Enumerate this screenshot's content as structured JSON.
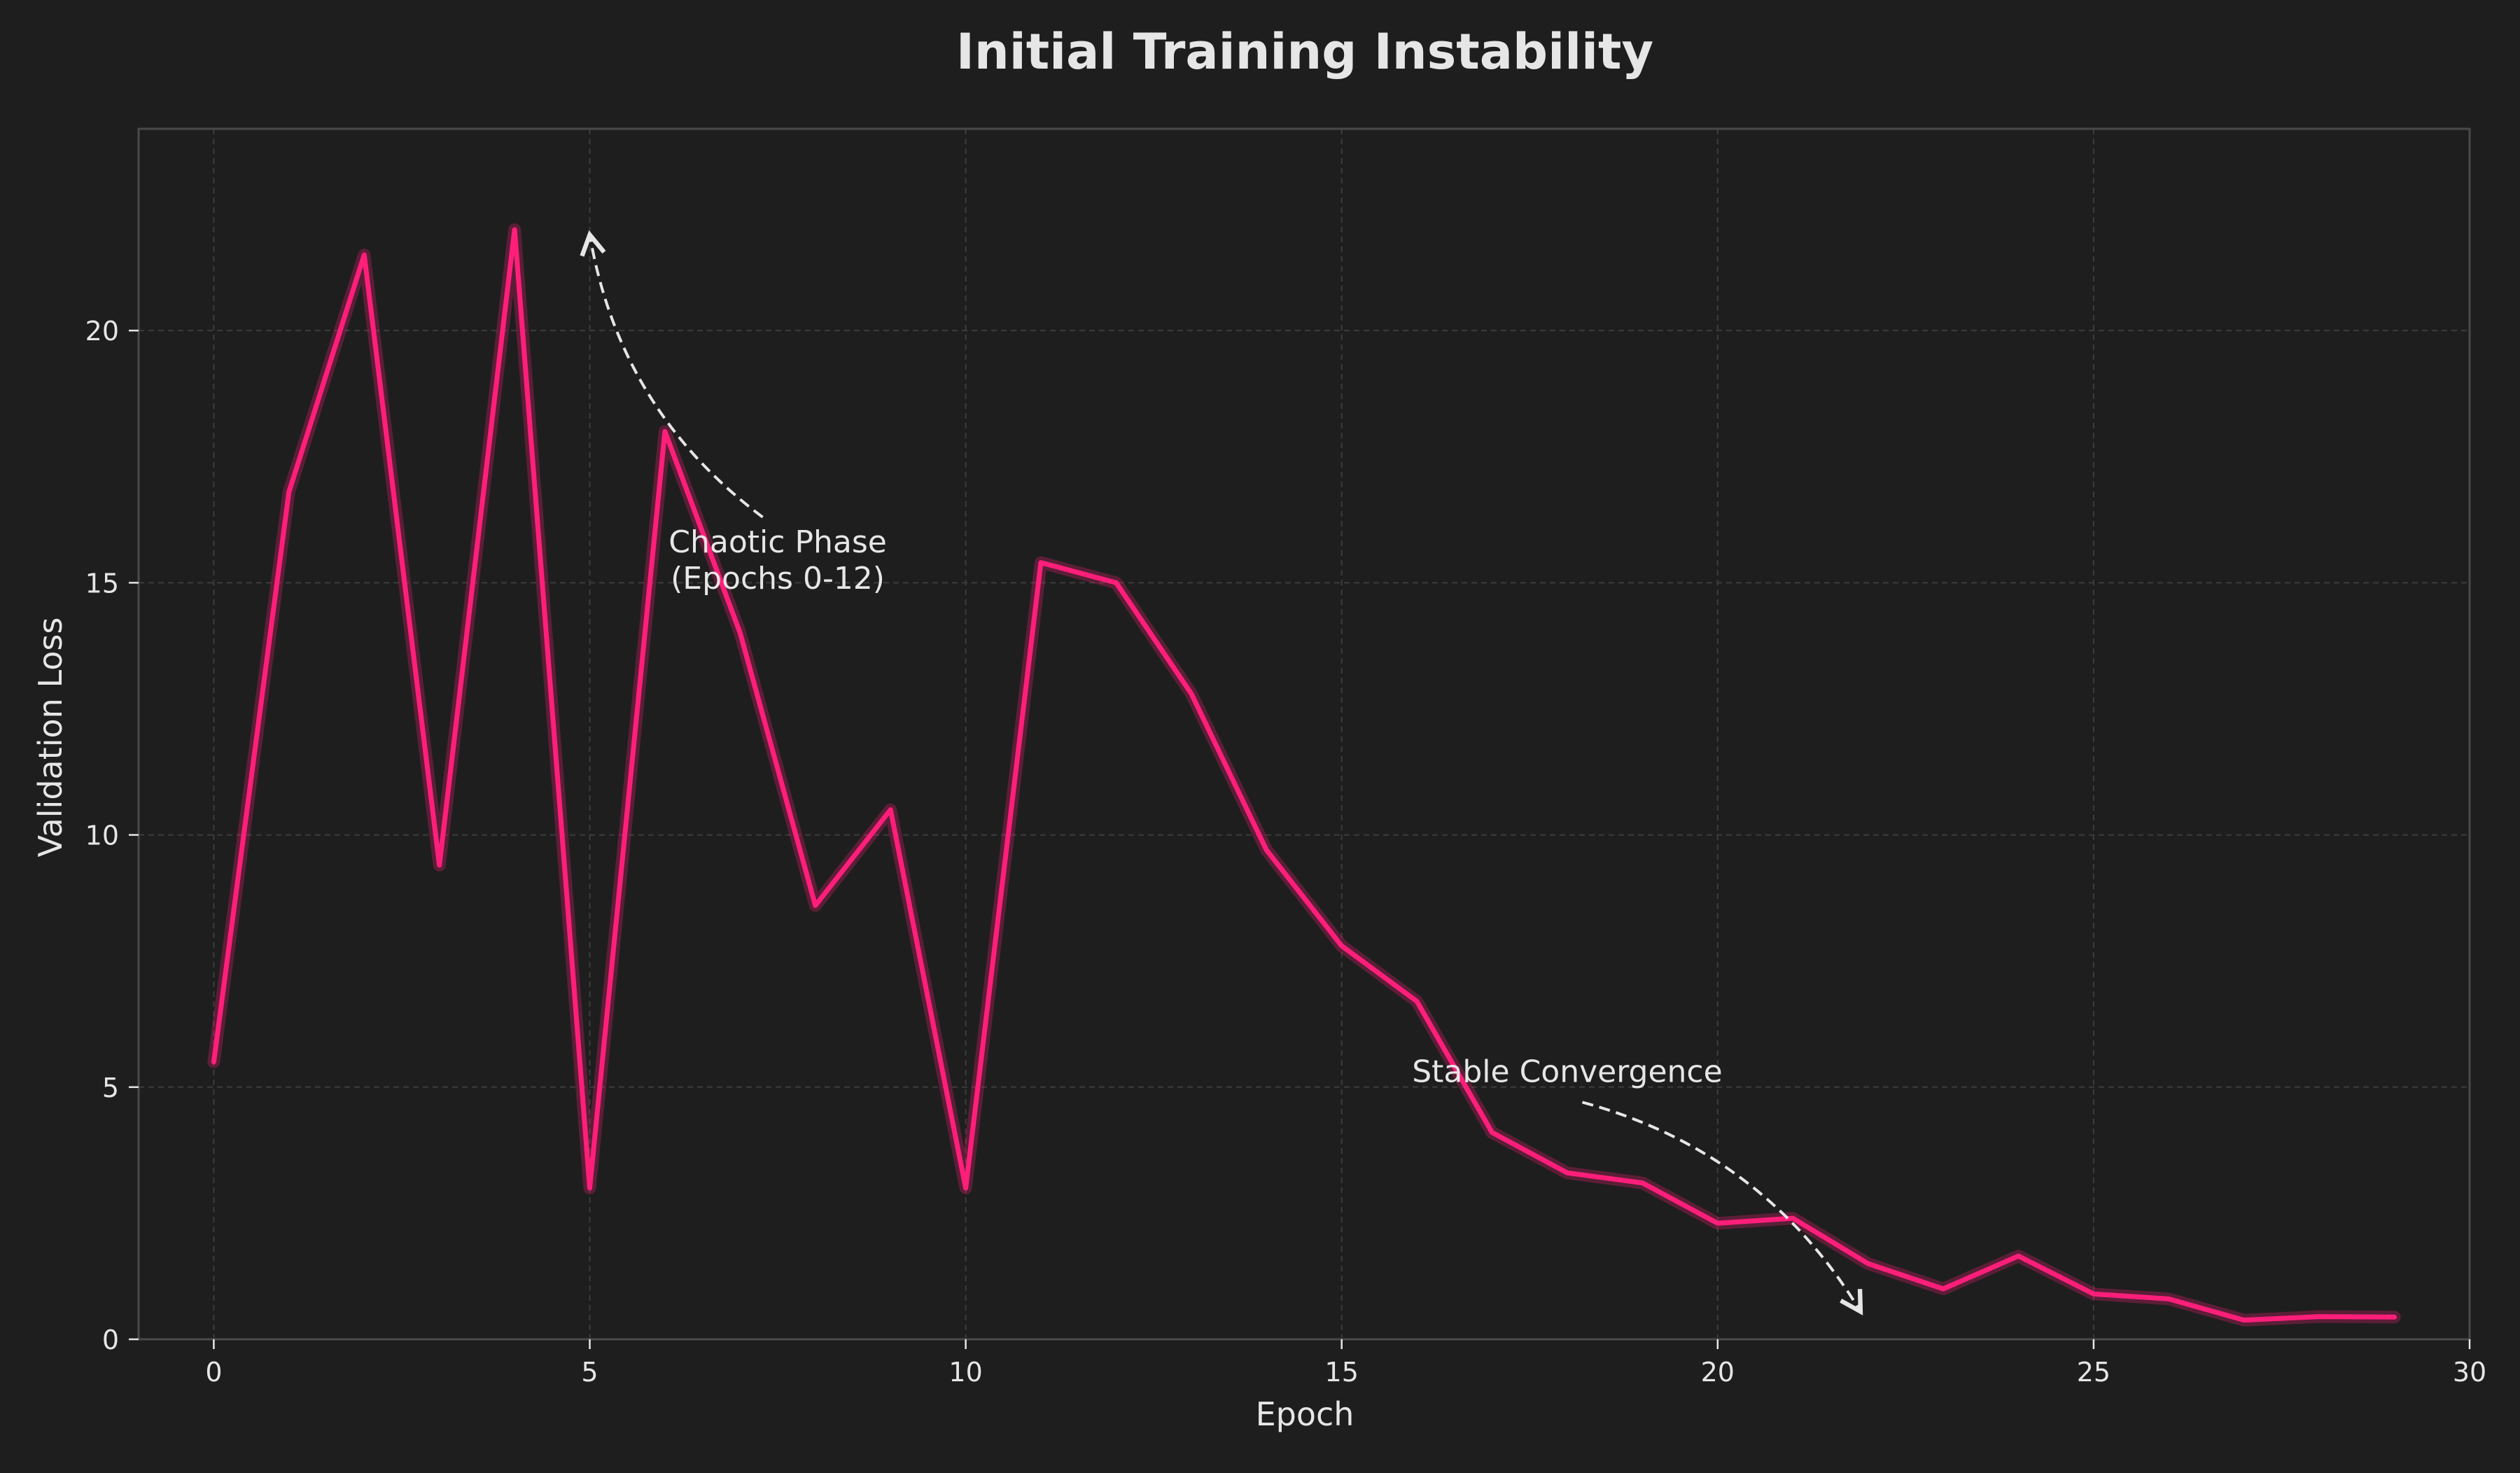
{
  "chart_data": {
    "type": "line",
    "title": "Initial Training Instability",
    "xlabel": "Epoch",
    "ylabel": "Validation Loss",
    "xlim": [
      -1,
      30
    ],
    "ylim": [
      0,
      24
    ],
    "x_ticks": [
      0,
      5,
      10,
      15,
      20,
      25,
      30
    ],
    "y_ticks": [
      0,
      5,
      10,
      15,
      20
    ],
    "grid": true,
    "series": [
      {
        "color": "#ff1f7a",
        "x": [
          0,
          1,
          2,
          3,
          4,
          5,
          6,
          7,
          8,
          9,
          10,
          11,
          12,
          13,
          14,
          15,
          16,
          17,
          18,
          19,
          20,
          21,
          22,
          23,
          24,
          25,
          26,
          27,
          28,
          29
        ],
        "y": [
          5.5,
          16.8,
          21.5,
          9.4,
          22.0,
          3.0,
          18.0,
          14.0,
          8.6,
          10.5,
          3.0,
          15.4,
          15.0,
          12.8,
          9.7,
          7.8,
          6.7,
          4.1,
          3.3,
          3.1,
          2.3,
          2.4,
          1.5,
          1.0,
          1.65,
          0.9,
          0.8,
          0.38,
          0.45,
          0.44
        ]
      }
    ],
    "annotations": [
      {
        "text_lines": [
          "Chaotic Phase",
          "(Epochs 0-12)"
        ],
        "text_anchor": [
          7.5,
          15.6
        ],
        "arrow_from": [
          7.3,
          16.3
        ],
        "arrow_to": [
          5.0,
          21.9
        ]
      },
      {
        "text_lines": [
          "Stable Convergence"
        ],
        "text_anchor": [
          18.0,
          5.1
        ],
        "arrow_from": [
          18.2,
          4.7
        ],
        "arrow_to": [
          21.9,
          0.55
        ]
      }
    ]
  },
  "colors": {
    "background": "#1e1e1e",
    "line": "#ff1f7a",
    "text": "#e6e6e6",
    "grid": "#3c3c3c",
    "frame": "#4a4a4a"
  }
}
